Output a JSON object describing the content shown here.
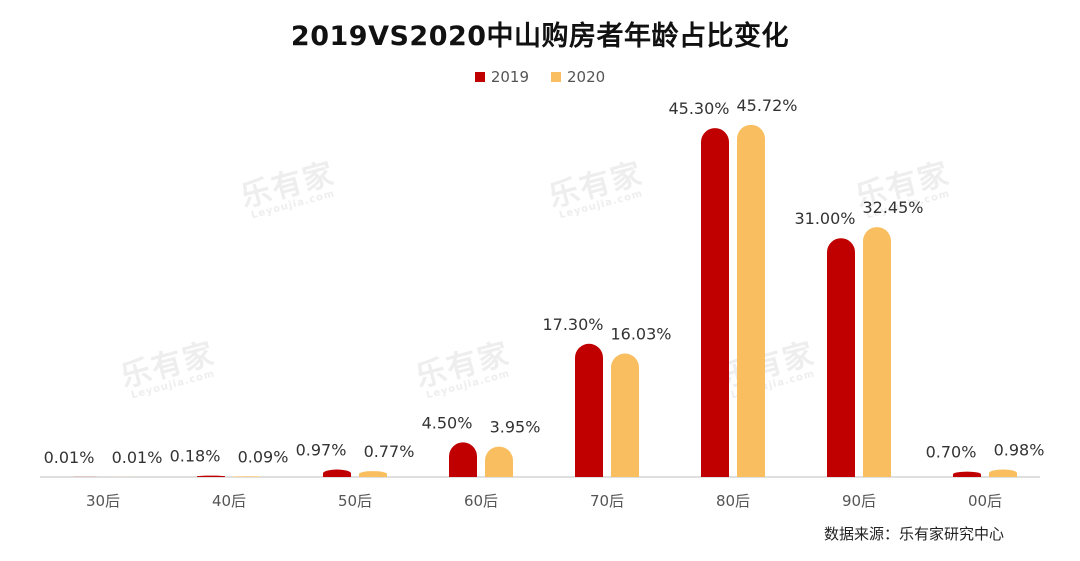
{
  "title": "2019VS2020中山购房者年龄占比变化",
  "source": "数据来源：乐有家研究中心",
  "watermark": {
    "text": "乐有家",
    "sub": "Leyoujia.com"
  },
  "colors": {
    "s2019": "#C00000",
    "s2020": "#F8BE5F",
    "axis": "#bfbfbf"
  },
  "chart_data": {
    "type": "bar",
    "title": "2019VS2020中山购房者年龄占比变化",
    "categories": [
      "30后",
      "40后",
      "50后",
      "60后",
      "70后",
      "80后",
      "90后",
      "00后"
    ],
    "series": [
      {
        "name": "2019",
        "values": [
          0.01,
          0.18,
          0.97,
          4.5,
          17.3,
          45.3,
          31.0,
          0.7
        ],
        "labels": [
          "0.01%",
          "0.18%",
          "0.97%",
          "4.50%",
          "17.30%",
          "45.30%",
          "31.00%",
          "0.70%"
        ]
      },
      {
        "name": "2020",
        "values": [
          0.01,
          0.09,
          0.77,
          3.95,
          16.03,
          45.72,
          32.45,
          0.98
        ],
        "labels": [
          "0.01%",
          "0.09%",
          "0.77%",
          "3.95%",
          "16.03%",
          "45.72%",
          "32.45%",
          "0.98%"
        ]
      }
    ],
    "ylim": [
      0,
      47
    ],
    "legend": "top-center",
    "grid": false
  }
}
